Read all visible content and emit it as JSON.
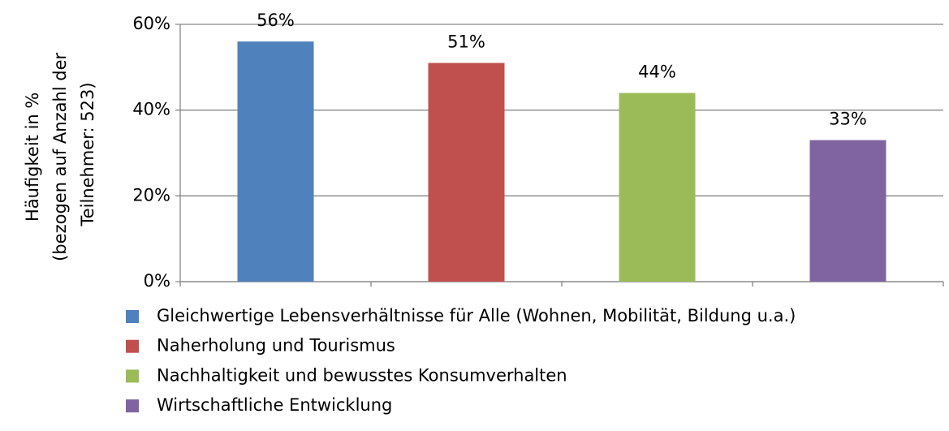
{
  "chart_data": {
    "type": "bar",
    "y_label": [
      "Häufigkeit in %",
      "(bezogen auf Anzahl der",
      "Teilnehmer: 523)"
    ],
    "series": [
      {
        "name": "Gleichwertige Lebensverhältnisse für Alle (Wohnen, Mobilität, Bildung u.a.)",
        "color": "#4f81bd",
        "values": [
          56
        ],
        "value_labels": [
          "56%"
        ]
      },
      {
        "name": "Naherholung und Tourismus",
        "color": "#c0504d",
        "values": [
          51
        ],
        "value_labels": [
          "51%"
        ]
      },
      {
        "name": "Nachhaltigkeit und bewusstes Konsumverhalten",
        "color": "#9bbb59",
        "values": [
          44
        ],
        "value_labels": [
          "44%"
        ]
      },
      {
        "name": "Wirtschaftliche Entwicklung",
        "color": "#8064a2",
        "values": [
          33
        ],
        "value_labels": [
          "33%"
        ]
      }
    ],
    "ylim": [
      0,
      60
    ],
    "yticks": [
      {
        "value": 0,
        "label": "0%"
      },
      {
        "value": 20,
        "label": "20%"
      },
      {
        "value": 40,
        "label": "40%"
      },
      {
        "value": 60,
        "label": "60%"
      }
    ],
    "grid": true,
    "legend": "bottom"
  }
}
